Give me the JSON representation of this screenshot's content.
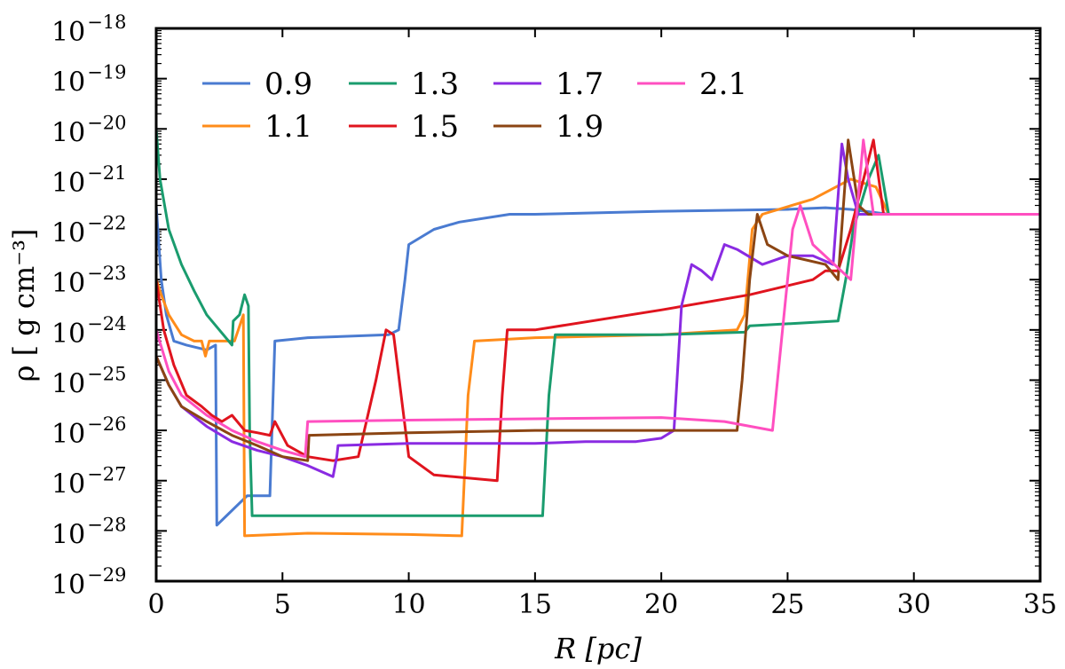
{
  "chart_data": {
    "type": "line",
    "xlabel": "R [pc]",
    "ylabel": "ρ [ g cm⁻³]",
    "xlim": [
      0,
      35
    ],
    "ylim": [
      1e-29,
      1e-18
    ],
    "yscale": "log",
    "xticks": [
      0,
      5,
      10,
      15,
      20,
      25,
      30,
      35
    ],
    "xtick_labels": [
      "0",
      "5",
      "10",
      "15",
      "20",
      "25",
      "30",
      "35"
    ],
    "yticks_exp": [
      -29,
      -28,
      -27,
      -26,
      -25,
      -24,
      -23,
      -22,
      -21,
      -20,
      -19,
      -18
    ],
    "ytick_base": "10",
    "ytick_exponents": [
      "−29",
      "−28",
      "−27",
      "−26",
      "−25",
      "−24",
      "−23",
      "−22",
      "−21",
      "−20",
      "−19",
      "−18"
    ],
    "grid": false,
    "legend_position": "top-left",
    "series": [
      {
        "name": "0.9",
        "color": "#4a7bd1",
        "points": [
          [
            0,
            3e-22
          ],
          [
            0.2,
            1e-23
          ],
          [
            0.4,
            2e-24
          ],
          [
            0.7,
            6e-25
          ],
          [
            1.2,
            5e-25
          ],
          [
            2.0,
            4e-25
          ],
          [
            2.35,
            5e-25
          ],
          [
            2.4,
            1.3e-28
          ],
          [
            3.6,
            5e-28
          ],
          [
            4.5,
            5e-28
          ],
          [
            4.7,
            6e-25
          ],
          [
            6,
            7e-25
          ],
          [
            9.2,
            8e-25
          ],
          [
            9.6,
            1e-24
          ],
          [
            9.85,
            1e-23
          ],
          [
            10,
            5e-23
          ],
          [
            11,
            1e-22
          ],
          [
            12,
            1.4e-22
          ],
          [
            14,
            2e-22
          ],
          [
            15,
            2e-22
          ],
          [
            20,
            2.3e-22
          ],
          [
            25,
            2.5e-22
          ],
          [
            26.5,
            2.7e-22
          ],
          [
            27.5,
            2.5e-22
          ],
          [
            29,
            2e-22
          ],
          [
            35,
            2e-22
          ]
        ]
      },
      {
        "name": "1.1",
        "color": "#ff8c1a",
        "points": [
          [
            0,
            1e-23
          ],
          [
            0.2,
            5e-24
          ],
          [
            0.5,
            2e-24
          ],
          [
            1.0,
            8e-25
          ],
          [
            1.5,
            6e-25
          ],
          [
            1.8,
            6e-25
          ],
          [
            1.95,
            3e-25
          ],
          [
            2.1,
            6e-25
          ],
          [
            3.1,
            6e-25
          ],
          [
            3.25,
            1e-24
          ],
          [
            3.45,
            2e-24
          ],
          [
            3.5,
            8e-29
          ],
          [
            6,
            9e-29
          ],
          [
            10,
            8.5e-29
          ],
          [
            12.1,
            8e-29
          ],
          [
            12.35,
            5e-26
          ],
          [
            12.6,
            6e-25
          ],
          [
            15,
            7e-25
          ],
          [
            20,
            8e-25
          ],
          [
            23,
            1e-24
          ],
          [
            23.3,
            2e-24
          ],
          [
            23.6,
            1e-22
          ],
          [
            24,
            2e-22
          ],
          [
            26,
            4e-22
          ],
          [
            27.5,
            1e-21
          ],
          [
            28.5,
            7e-22
          ],
          [
            29,
            2e-22
          ],
          [
            35,
            2e-22
          ]
        ]
      },
      {
        "name": "1.3",
        "color": "#1a9c6e",
        "points": [
          [
            0,
            1e-20
          ],
          [
            0.15,
            1e-21
          ],
          [
            0.5,
            1e-22
          ],
          [
            1,
            2e-23
          ],
          [
            1.5,
            6e-24
          ],
          [
            2,
            2e-24
          ],
          [
            2.5,
            1e-24
          ],
          [
            3,
            5e-25
          ],
          [
            3.05,
            1.5e-24
          ],
          [
            3.3,
            2e-24
          ],
          [
            3.5,
            5e-24
          ],
          [
            3.65,
            3e-24
          ],
          [
            3.7,
            1e-26
          ],
          [
            3.8,
            2e-28
          ],
          [
            6,
            2e-28
          ],
          [
            10,
            2e-28
          ],
          [
            15.3,
            2e-28
          ],
          [
            15.55,
            5e-26
          ],
          [
            15.8,
            8e-25
          ],
          [
            20,
            8e-25
          ],
          [
            23.3,
            9e-25
          ],
          [
            23.5,
            1.2e-24
          ],
          [
            27,
            1.5e-24
          ],
          [
            27.3,
            1e-23
          ],
          [
            27.6,
            1e-22
          ],
          [
            28.2,
            1e-21
          ],
          [
            28.6,
            3e-21
          ],
          [
            29,
            2e-22
          ],
          [
            35,
            2e-22
          ]
        ]
      },
      {
        "name": "1.5",
        "color": "#e0141e",
        "points": [
          [
            0,
            1e-23
          ],
          [
            0.3,
            1e-24
          ],
          [
            0.7,
            2e-25
          ],
          [
            1.2,
            5e-26
          ],
          [
            1.8,
            3e-26
          ],
          [
            2.2,
            2e-26
          ],
          [
            2.6,
            1.5e-26
          ],
          [
            3,
            2e-26
          ],
          [
            3.5,
            1e-26
          ],
          [
            4,
            9e-27
          ],
          [
            4.5,
            8e-27
          ],
          [
            4.7,
            1.5e-26
          ],
          [
            5.2,
            5e-27
          ],
          [
            6,
            3e-27
          ],
          [
            7,
            2.5e-27
          ],
          [
            8,
            3e-27
          ],
          [
            8.7,
            1e-25
          ],
          [
            9.1,
            1e-24
          ],
          [
            9.4,
            8e-25
          ],
          [
            9.7,
            5e-26
          ],
          [
            10,
            3e-27
          ],
          [
            11,
            1.3e-27
          ],
          [
            13.5,
            1e-27
          ],
          [
            13.7,
            5e-26
          ],
          [
            13.9,
            1e-24
          ],
          [
            15,
            1e-24
          ],
          [
            20,
            2.5e-24
          ],
          [
            23.5,
            5e-24
          ],
          [
            26,
            1e-23
          ],
          [
            26.5,
            1.5e-23
          ],
          [
            27,
            1.5e-23
          ],
          [
            27.5,
            1e-22
          ],
          [
            28.4,
            6e-21
          ],
          [
            28.8,
            2e-22
          ],
          [
            35,
            2e-22
          ]
        ]
      },
      {
        "name": "1.7",
        "color": "#8a2be2",
        "points": [
          [
            0,
            3e-25
          ],
          [
            0.5,
            8e-26
          ],
          [
            1,
            3e-26
          ],
          [
            2,
            1.2e-26
          ],
          [
            3,
            6e-27
          ],
          [
            4,
            4e-27
          ],
          [
            5,
            3e-27
          ],
          [
            6,
            2e-27
          ],
          [
            7,
            1.2e-27
          ],
          [
            7.15,
            3e-27
          ],
          [
            7.2,
            5e-27
          ],
          [
            10,
            5.5e-27
          ],
          [
            15,
            5.5e-27
          ],
          [
            17,
            6e-27
          ],
          [
            19,
            6e-27
          ],
          [
            20,
            7e-27
          ],
          [
            20.5,
            1e-26
          ],
          [
            20.8,
            3e-24
          ],
          [
            21.2,
            2e-23
          ],
          [
            21.6,
            1.5e-23
          ],
          [
            22,
            1e-23
          ],
          [
            22.5,
            5e-23
          ],
          [
            23,
            4e-23
          ],
          [
            24,
            2e-23
          ],
          [
            25,
            3e-23
          ],
          [
            26,
            3e-23
          ],
          [
            26.8,
            2e-23
          ],
          [
            27.15,
            5e-21
          ],
          [
            27.4,
            1e-21
          ],
          [
            27.8,
            2e-22
          ],
          [
            35,
            2e-22
          ]
        ]
      },
      {
        "name": "1.9",
        "color": "#8b4513",
        "points": [
          [
            0,
            3e-25
          ],
          [
            0.5,
            8e-26
          ],
          [
            1,
            3e-26
          ],
          [
            2,
            1.5e-26
          ],
          [
            3,
            8e-27
          ],
          [
            4,
            5e-27
          ],
          [
            5,
            3e-27
          ],
          [
            6,
            2.5e-27
          ],
          [
            6.05,
            8e-27
          ],
          [
            10,
            9e-27
          ],
          [
            15,
            1e-26
          ],
          [
            20,
            1e-26
          ],
          [
            23,
            1e-26
          ],
          [
            23.2,
            1e-25
          ],
          [
            23.5,
            1e-23
          ],
          [
            23.8,
            2e-22
          ],
          [
            24.2,
            5e-23
          ],
          [
            25,
            3e-23
          ],
          [
            26.5,
            2e-23
          ],
          [
            27,
            1e-23
          ],
          [
            27.4,
            6e-21
          ],
          [
            27.8,
            3e-22
          ],
          [
            28.2,
            2e-22
          ],
          [
            35,
            2e-22
          ]
        ]
      },
      {
        "name": "2.1",
        "color": "#ff4fc0",
        "points": [
          [
            0,
            1e-24
          ],
          [
            0.5,
            1.5e-25
          ],
          [
            1,
            5e-26
          ],
          [
            2,
            2e-26
          ],
          [
            3,
            1e-26
          ],
          [
            4,
            6e-27
          ],
          [
            5,
            4e-27
          ],
          [
            5.9,
            3e-27
          ],
          [
            6,
            1.5e-26
          ],
          [
            10,
            1.6e-26
          ],
          [
            15,
            1.7e-26
          ],
          [
            20,
            1.8e-26
          ],
          [
            22.5,
            1.5e-26
          ],
          [
            24.4,
            1e-26
          ],
          [
            24.8,
            1e-24
          ],
          [
            25.2,
            1e-22
          ],
          [
            25.5,
            3e-22
          ],
          [
            26,
            5e-23
          ],
          [
            27.5,
            1e-23
          ],
          [
            28,
            6e-21
          ],
          [
            28.4,
            2e-22
          ],
          [
            35,
            2e-22
          ]
        ]
      }
    ]
  }
}
